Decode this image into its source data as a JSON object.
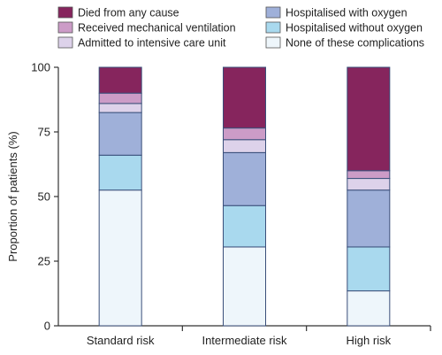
{
  "chart_data": {
    "type": "bar",
    "stacked": true,
    "title": "",
    "xlabel": "",
    "ylabel": "Proportion of patients (%)",
    "ylim": [
      0,
      100
    ],
    "yticks": [
      0,
      25,
      50,
      75,
      100
    ],
    "grid": false,
    "legend_position": "top",
    "categories": [
      "Standard risk",
      "Intermediate risk",
      "High risk"
    ],
    "series": [
      {
        "name": "None of these complications",
        "color": "#eef6fb",
        "values": [
          52.5,
          30.5,
          13.5
        ]
      },
      {
        "name": "Hospitalised without oxygen",
        "color": "#a9d9ee",
        "values": [
          13.5,
          16.0,
          17.0
        ]
      },
      {
        "name": "Hospitalised with oxygen",
        "color": "#9fb0d9",
        "values": [
          16.5,
          20.5,
          22.0
        ]
      },
      {
        "name": "Admitted to intensive care unit",
        "color": "#ddd2ea",
        "values": [
          3.5,
          5.0,
          4.5
        ]
      },
      {
        "name": "Received mechanical ventilation",
        "color": "#cc9cc7",
        "values": [
          4.0,
          4.5,
          3.0
        ]
      },
      {
        "name": "Died from any cause",
        "color": "#86255d",
        "values": [
          10.0,
          23.5,
          40.0
        ]
      }
    ],
    "legend_order": [
      "Died from any cause",
      "Hospitalised with oxygen",
      "Received mechanical ventilation",
      "Hospitalised without oxygen",
      "Admitted to intensive care unit",
      "None of these complications"
    ]
  }
}
